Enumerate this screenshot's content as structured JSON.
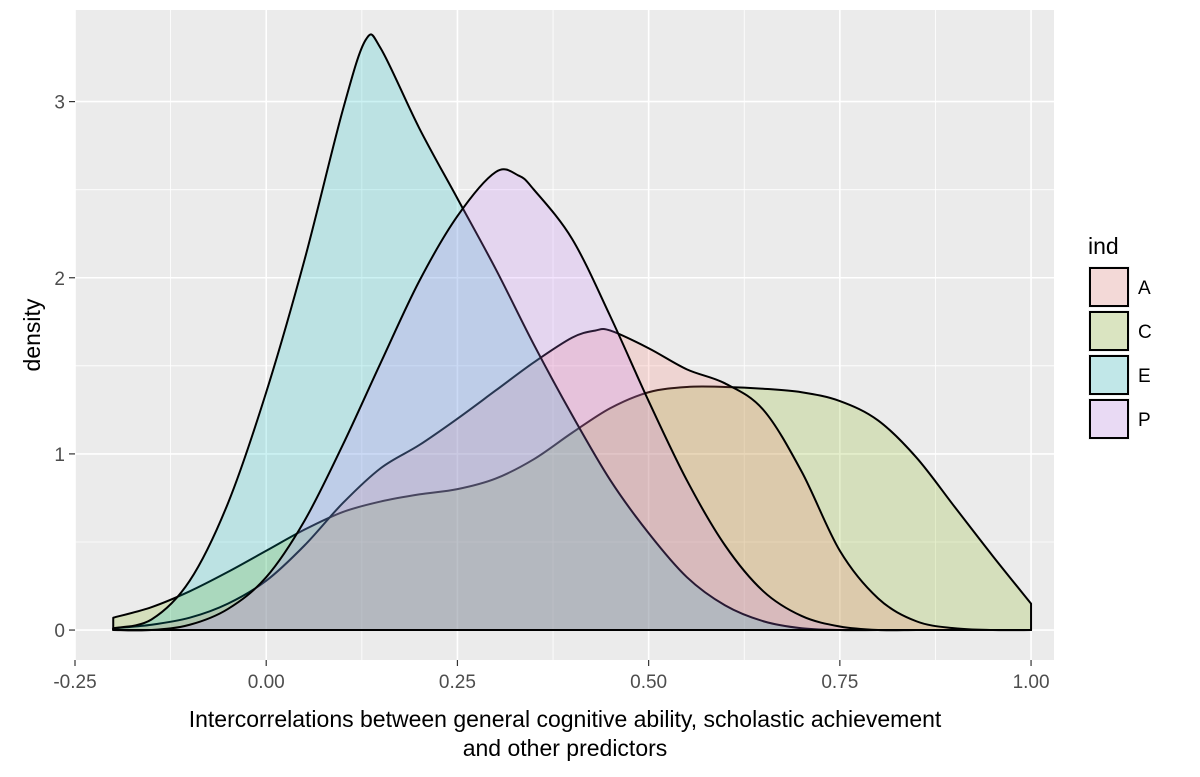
{
  "chart_data": {
    "type": "area",
    "title": "",
    "xlabel_lines": [
      "Intercorrelations between general cognitive ability, scholastic achievement",
      "and other predictors"
    ],
    "ylabel": "density",
    "xlim": [
      -0.25,
      1.03
    ],
    "ylim": [
      -0.17,
      3.52
    ],
    "x_ticks": [
      -0.25,
      0.0,
      0.25,
      0.5,
      0.75,
      1.0
    ],
    "x_tick_labels": [
      "-0.25",
      "0.00",
      "0.25",
      "0.50",
      "0.75",
      "1.00"
    ],
    "y_ticks": [
      0,
      1,
      2,
      3
    ],
    "y_tick_labels": [
      "0",
      "1",
      "2",
      "3"
    ],
    "grid": true,
    "legend": {
      "title": "ind",
      "position": "right"
    },
    "fill_opacity": 0.2,
    "series": [
      {
        "name": "C",
        "color": "#7CAE00",
        "points": [
          [
            -0.2,
            0.07
          ],
          [
            -0.15,
            0.13
          ],
          [
            -0.1,
            0.22
          ],
          [
            -0.05,
            0.33
          ],
          [
            0.0,
            0.45
          ],
          [
            0.05,
            0.57
          ],
          [
            0.1,
            0.67
          ],
          [
            0.15,
            0.73
          ],
          [
            0.2,
            0.77
          ],
          [
            0.25,
            0.8
          ],
          [
            0.3,
            0.86
          ],
          [
            0.35,
            0.97
          ],
          [
            0.4,
            1.12
          ],
          [
            0.45,
            1.26
          ],
          [
            0.5,
            1.35
          ],
          [
            0.55,
            1.38
          ],
          [
            0.6,
            1.38
          ],
          [
            0.65,
            1.37
          ],
          [
            0.7,
            1.35
          ],
          [
            0.75,
            1.3
          ],
          [
            0.8,
            1.19
          ],
          [
            0.85,
            0.98
          ],
          [
            0.9,
            0.7
          ],
          [
            0.95,
            0.42
          ],
          [
            1.0,
            0.15
          ]
        ]
      },
      {
        "name": "A",
        "color": "#F8766D",
        "points": [
          [
            -0.2,
            0.01
          ],
          [
            -0.15,
            0.03
          ],
          [
            -0.1,
            0.07
          ],
          [
            -0.05,
            0.15
          ],
          [
            0.0,
            0.28
          ],
          [
            0.05,
            0.48
          ],
          [
            0.1,
            0.72
          ],
          [
            0.15,
            0.92
          ],
          [
            0.2,
            1.05
          ],
          [
            0.25,
            1.2
          ],
          [
            0.3,
            1.36
          ],
          [
            0.35,
            1.52
          ],
          [
            0.4,
            1.66
          ],
          [
            0.43,
            1.7
          ],
          [
            0.45,
            1.7
          ],
          [
            0.5,
            1.6
          ],
          [
            0.55,
            1.48
          ],
          [
            0.6,
            1.4
          ],
          [
            0.65,
            1.25
          ],
          [
            0.7,
            0.9
          ],
          [
            0.75,
            0.45
          ],
          [
            0.8,
            0.18
          ],
          [
            0.85,
            0.05
          ],
          [
            0.9,
            0.01
          ],
          [
            0.95,
            0.0
          ],
          [
            1.0,
            0.0
          ]
        ]
      },
      {
        "name": "E",
        "color": "#00BFC4",
        "points": [
          [
            -0.2,
            0.01
          ],
          [
            -0.15,
            0.06
          ],
          [
            -0.1,
            0.28
          ],
          [
            -0.05,
            0.72
          ],
          [
            0.0,
            1.35
          ],
          [
            0.05,
            2.1
          ],
          [
            0.1,
            2.95
          ],
          [
            0.13,
            3.35
          ],
          [
            0.15,
            3.3
          ],
          [
            0.2,
            2.85
          ],
          [
            0.25,
            2.45
          ],
          [
            0.3,
            2.05
          ],
          [
            0.35,
            1.62
          ],
          [
            0.4,
            1.22
          ],
          [
            0.45,
            0.85
          ],
          [
            0.5,
            0.55
          ],
          [
            0.55,
            0.3
          ],
          [
            0.6,
            0.14
          ],
          [
            0.65,
            0.05
          ],
          [
            0.7,
            0.01
          ],
          [
            0.75,
            0.0
          ],
          [
            0.8,
            0.0
          ],
          [
            0.85,
            0.0
          ],
          [
            0.9,
            0.0
          ],
          [
            0.95,
            0.0
          ],
          [
            1.0,
            0.0
          ]
        ]
      },
      {
        "name": "P",
        "color": "#C77CFF",
        "points": [
          [
            -0.2,
            0.0
          ],
          [
            -0.15,
            0.0
          ],
          [
            -0.1,
            0.03
          ],
          [
            -0.05,
            0.12
          ],
          [
            0.0,
            0.3
          ],
          [
            0.05,
            0.62
          ],
          [
            0.1,
            1.05
          ],
          [
            0.15,
            1.52
          ],
          [
            0.2,
            1.98
          ],
          [
            0.25,
            2.35
          ],
          [
            0.3,
            2.6
          ],
          [
            0.33,
            2.58
          ],
          [
            0.35,
            2.5
          ],
          [
            0.4,
            2.22
          ],
          [
            0.45,
            1.78
          ],
          [
            0.5,
            1.3
          ],
          [
            0.55,
            0.85
          ],
          [
            0.6,
            0.48
          ],
          [
            0.65,
            0.22
          ],
          [
            0.7,
            0.08
          ],
          [
            0.75,
            0.02
          ],
          [
            0.8,
            0.0
          ],
          [
            0.85,
            0.0
          ],
          [
            0.9,
            0.0
          ],
          [
            0.95,
            0.0
          ],
          [
            1.0,
            0.0
          ]
        ]
      }
    ],
    "draw_order": [
      "C",
      "A",
      "E",
      "P"
    ],
    "legend_order": [
      "A",
      "C",
      "E",
      "P"
    ]
  }
}
